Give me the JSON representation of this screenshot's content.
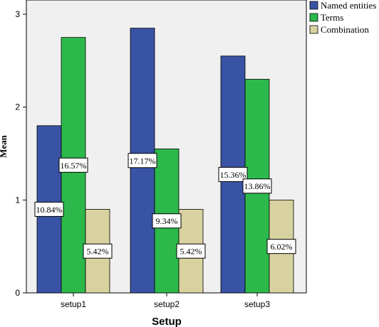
{
  "chart_data": {
    "type": "bar",
    "xlabel": "Setup",
    "ylabel": "Mean",
    "ylim": [
      0,
      3.0
    ],
    "yticks": [
      0,
      1,
      2,
      3
    ],
    "categories": [
      "setup1",
      "setup2",
      "setup3"
    ],
    "series": [
      {
        "name": "Named entities",
        "color": "#3953a4",
        "values": [
          1.8,
          2.85,
          2.55
        ],
        "labels": [
          "10.84%",
          "17.17%",
          "15.36%"
        ]
      },
      {
        "name": "Terms",
        "color": "#2db84b",
        "values": [
          2.75,
          1.55,
          2.3
        ],
        "labels": [
          "16.57%",
          "9.34%",
          "13.86%"
        ]
      },
      {
        "name": "Combination",
        "color": "#d8d2a0",
        "values": [
          0.9,
          0.9,
          1.0
        ],
        "labels": [
          "5.42%",
          "5.42%",
          "6.02%"
        ]
      }
    ],
    "grid": false,
    "legend_position": "right"
  }
}
